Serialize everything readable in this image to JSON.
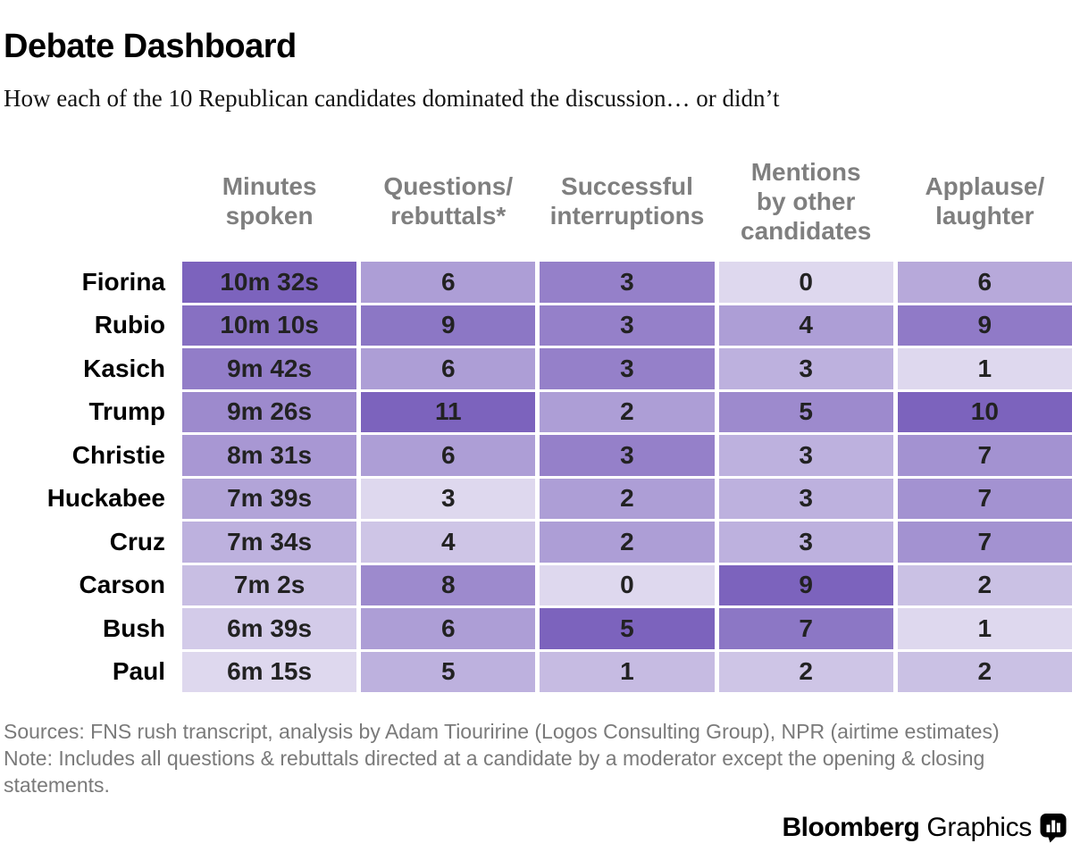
{
  "page": {
    "title": "Debate Dashboard",
    "subtitle": "How each of the 10 Republican candidates dominated the discussion… or didn’t"
  },
  "chart_data": {
    "type": "heatmap",
    "columns": [
      {
        "key": "minutes",
        "label": "Minutes spoken",
        "label_lines": [
          "Minutes",
          "spoken"
        ]
      },
      {
        "key": "questions",
        "label": "Questions/rebuttals*",
        "label_lines": [
          "Questions/",
          "rebuttals*"
        ]
      },
      {
        "key": "interruptions",
        "label": "Successful interruptions",
        "label_lines": [
          "Successful",
          "interruptions"
        ]
      },
      {
        "key": "mentions",
        "label": "Mentions by other candidates",
        "label_lines": [
          "Mentions",
          "by other",
          "candidates"
        ]
      },
      {
        "key": "applause",
        "label": "Applause/laughter",
        "label_lines": [
          "Applause/",
          "laughter"
        ]
      }
    ],
    "rows": [
      {
        "candidate": "Fiorina",
        "minutes": "10m 32s",
        "minutes_seconds": 632,
        "questions": 6,
        "interruptions": 3,
        "mentions": 0,
        "applause": 6
      },
      {
        "candidate": "Rubio",
        "minutes": "10m 10s",
        "minutes_seconds": 610,
        "questions": 9,
        "interruptions": 3,
        "mentions": 4,
        "applause": 9
      },
      {
        "candidate": "Kasich",
        "minutes": "9m 42s",
        "minutes_seconds": 582,
        "questions": 6,
        "interruptions": 3,
        "mentions": 3,
        "applause": 1
      },
      {
        "candidate": "Trump",
        "minutes": "9m 26s",
        "minutes_seconds": 566,
        "questions": 11,
        "interruptions": 2,
        "mentions": 5,
        "applause": 10
      },
      {
        "candidate": "Christie",
        "minutes": "8m 31s",
        "minutes_seconds": 511,
        "questions": 6,
        "interruptions": 3,
        "mentions": 3,
        "applause": 7
      },
      {
        "candidate": "Huckabee",
        "minutes": "7m 39s",
        "minutes_seconds": 459,
        "questions": 3,
        "interruptions": 2,
        "mentions": 3,
        "applause": 7
      },
      {
        "candidate": "Cruz",
        "minutes": "7m 34s",
        "minutes_seconds": 454,
        "questions": 4,
        "interruptions": 2,
        "mentions": 3,
        "applause": 7
      },
      {
        "candidate": "Carson",
        "minutes": "7m 2s",
        "minutes_seconds": 422,
        "questions": 8,
        "interruptions": 0,
        "mentions": 9,
        "applause": 2
      },
      {
        "candidate": "Bush",
        "minutes": "6m 39s",
        "minutes_seconds": 399,
        "questions": 6,
        "interruptions": 5,
        "mentions": 7,
        "applause": 1
      },
      {
        "candidate": "Paul",
        "minutes": "6m 15s",
        "minutes_seconds": 375,
        "questions": 5,
        "interruptions": 1,
        "mentions": 2,
        "applause": 2
      }
    ],
    "color_scale": {
      "light": "#ded8ee",
      "dark": "#7c63bd",
      "rule": "per-column rank of distinct values; lowest value = light, highest value = dark"
    }
  },
  "footer": {
    "sources": "Sources: FNS rush transcript, analysis by Adam Tiouririne (Logos Consulting Group), NPR (airtime estimates)",
    "note": "Note: Includes all questions & rebuttals directed at a candidate by a moderator except the opening & closing statements."
  },
  "branding": {
    "name_bold": "Bloomberg",
    "name_regular": "Graphics",
    "icon": "bar-chart-bubble-icon"
  }
}
